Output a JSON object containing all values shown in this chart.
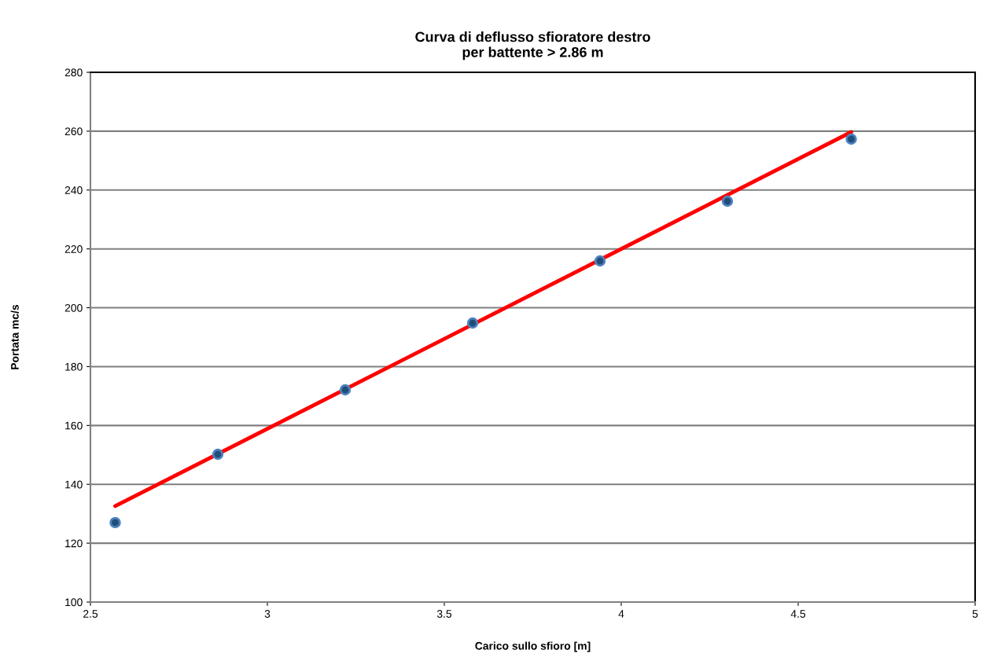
{
  "chart_data": {
    "type": "scatter",
    "title": "Curva di deflusso sfioratore destro\nper battente > 2.86 m",
    "xlabel": "Carico sullo sfioro [m]",
    "ylabel": "Portata mc/s",
    "series": [
      {
        "marker": "circle",
        "color": "#1f4e79",
        "x": [
          2.57,
          2.86,
          3.22,
          3.58,
          3.94,
          4.3,
          4.65
        ],
        "values": [
          127,
          150.2,
          172.1,
          194.8,
          215.9,
          236.2,
          257.3
        ]
      },
      {
        "type": "line",
        "marker": "none",
        "color": "#ff0000",
        "x": [
          2.57,
          4.65
        ],
        "values": [
          132.6,
          259.7
        ]
      }
    ],
    "xlim": [
      2.5,
      5
    ],
    "xticks": [
      2.5,
      3,
      3.5,
      4,
      4.5,
      5
    ],
    "ylim": [
      100,
      280
    ],
    "yticks": [
      100,
      120,
      140,
      160,
      180,
      200,
      220,
      240,
      260,
      280
    ],
    "grid": "y"
  }
}
